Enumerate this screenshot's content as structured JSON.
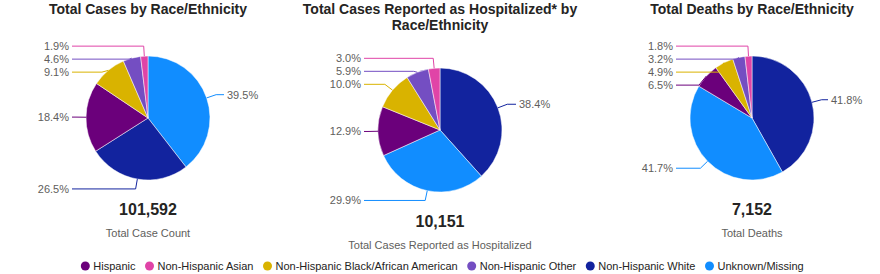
{
  "chart_data": [
    {
      "type": "pie",
      "title": "Total Cases by Race/Ethnicity",
      "categories": [
        "Unknown/Missing",
        "Non-Hispanic White",
        "Hispanic",
        "Non-Hispanic Black/African American",
        "Non-Hispanic Other",
        "Non-Hispanic Asian"
      ],
      "values": [
        39.5,
        26.5,
        18.4,
        9.1,
        4.6,
        1.9
      ],
      "value_labels": [
        "39.5%",
        "26.5%",
        "18.4%",
        "9.1%",
        "4.6%",
        "1.9%"
      ],
      "colors": [
        "#118DFF",
        "#12239E",
        "#6B007B",
        "#D9B300",
        "#744EC2",
        "#E044A7"
      ],
      "data_labels": true,
      "total": "101,592",
      "total_caption": "Total Case Count"
    },
    {
      "type": "pie",
      "title": "Total Cases Reported as Hospitalized* by Race/Ethnicity",
      "categories": [
        "Non-Hispanic White",
        "Unknown/Missing",
        "Hispanic",
        "Non-Hispanic Black/African American",
        "Non-Hispanic Other",
        "Non-Hispanic Asian"
      ],
      "values": [
        38.4,
        29.9,
        12.9,
        10.0,
        5.9,
        3.0
      ],
      "value_labels": [
        "38.4%",
        "29.9%",
        "12.9%",
        "10.0%",
        "5.9%",
        "3.0%"
      ],
      "colors": [
        "#12239E",
        "#118DFF",
        "#6B007B",
        "#D9B300",
        "#744EC2",
        "#E044A7"
      ],
      "data_labels": true,
      "total": "10,151",
      "total_caption": "Total Cases Reported as Hospitalized"
    },
    {
      "type": "pie",
      "title": "Total Deaths by Race/Ethnicity",
      "categories": [
        "Non-Hispanic White",
        "Unknown/Missing",
        "Hispanic",
        "Non-Hispanic Black/African American",
        "Non-Hispanic Other",
        "Non-Hispanic Asian"
      ],
      "values": [
        41.8,
        41.7,
        6.5,
        4.9,
        3.2,
        1.8
      ],
      "value_labels": [
        "41.8%",
        "41.7%",
        "6.5%",
        "4.9%",
        "3.2%",
        "1.8%"
      ],
      "colors": [
        "#12239E",
        "#118DFF",
        "#6B007B",
        "#D9B300",
        "#744EC2",
        "#E044A7"
      ],
      "data_labels": true,
      "total": "7,152",
      "total_caption": "Total Deaths"
    }
  ],
  "shared_legend": {
    "position": "bottom",
    "entries": [
      {
        "name": "Hispanic",
        "color": "#6B007B"
      },
      {
        "name": "Non-Hispanic Asian",
        "color": "#E044A7"
      },
      {
        "name": "Non-Hispanic Black/African American",
        "color": "#D9B300"
      },
      {
        "name": "Non-Hispanic Other",
        "color": "#744EC2"
      },
      {
        "name": "Non-Hispanic White",
        "color": "#12239E"
      },
      {
        "name": "Unknown/Missing",
        "color": "#118DFF"
      }
    ]
  }
}
